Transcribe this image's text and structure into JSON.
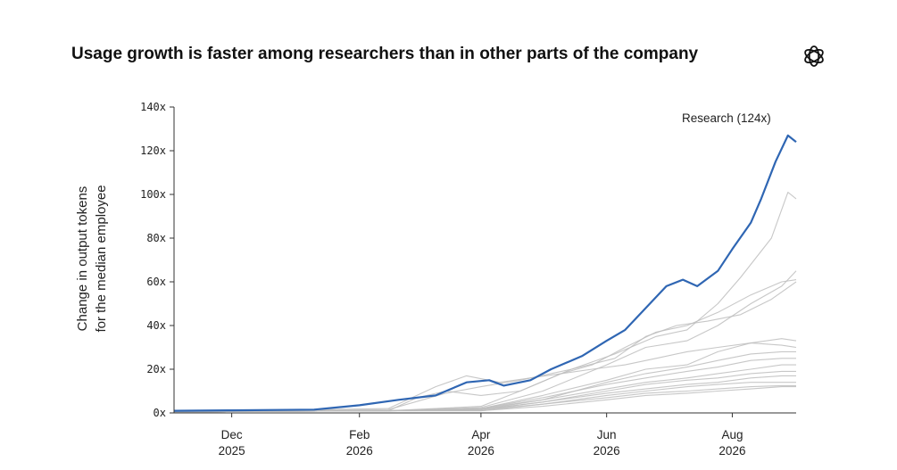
{
  "chart_data": {
    "type": "line",
    "title": "Usage growth is faster among researchers than in other parts of the company",
    "ylabel": [
      "Change in output tokens",
      "for the median employee"
    ],
    "ylim": [
      0,
      140
    ],
    "yticks": [
      0,
      20,
      40,
      60,
      80,
      100,
      120,
      140
    ],
    "ytick_suffix": "x",
    "xlim": [
      "2025-11-03",
      "2026-09-01"
    ],
    "xticks": [
      {
        "date": "2025-12-01",
        "month": "Dec",
        "year": "2025"
      },
      {
        "date": "2026-02-01",
        "month": "Feb",
        "year": "2026"
      },
      {
        "date": "2026-04-01",
        "month": "Apr",
        "year": "2026"
      },
      {
        "date": "2026-06-01",
        "month": "Jun",
        "year": "2026"
      },
      {
        "date": "2026-08-01",
        "month": "Aug",
        "year": "2026"
      }
    ],
    "annotation": "Research (124x)",
    "highlight_color": "#2f66b3",
    "other_color": "#bdbdbd",
    "series": [
      {
        "highlight": true,
        "points": [
          [
            "2025-11-03",
            1
          ],
          [
            "2025-12-01",
            1.2
          ],
          [
            "2026-01-10",
            1.5
          ],
          [
            "2026-02-01",
            3.5
          ],
          [
            "2026-02-20",
            6
          ],
          [
            "2026-03-10",
            8
          ],
          [
            "2026-03-25",
            14
          ],
          [
            "2026-04-05",
            15
          ],
          [
            "2026-04-12",
            12.5
          ],
          [
            "2026-04-25",
            15
          ],
          [
            "2026-05-05",
            20
          ],
          [
            "2026-05-20",
            26
          ],
          [
            "2026-06-01",
            33
          ],
          [
            "2026-06-10",
            38
          ],
          [
            "2026-06-20",
            48
          ],
          [
            "2026-06-30",
            58
          ],
          [
            "2026-07-08",
            61
          ],
          [
            "2026-07-15",
            58
          ],
          [
            "2026-07-25",
            65
          ],
          [
            "2026-08-01",
            75
          ],
          [
            "2026-08-10",
            87
          ],
          [
            "2026-08-15",
            98
          ],
          [
            "2026-08-22",
            115
          ],
          [
            "2026-08-28",
            127
          ],
          [
            "2026-09-01",
            124
          ]
        ]
      },
      {
        "points": [
          [
            "2025-11-03",
            0.5
          ],
          [
            "2026-02-15",
            1
          ],
          [
            "2026-04-01",
            3
          ],
          [
            "2026-04-20",
            10
          ],
          [
            "2026-05-15",
            20
          ],
          [
            "2026-06-05",
            27
          ],
          [
            "2026-06-25",
            35
          ],
          [
            "2026-07-10",
            38
          ],
          [
            "2026-07-25",
            50
          ],
          [
            "2026-08-05",
            62
          ],
          [
            "2026-08-20",
            80
          ],
          [
            "2026-08-28",
            101
          ],
          [
            "2026-09-01",
            98
          ]
        ]
      },
      {
        "points": [
          [
            "2025-11-03",
            0.5
          ],
          [
            "2026-02-15",
            1
          ],
          [
            "2026-04-01",
            2.5
          ],
          [
            "2026-05-01",
            10
          ],
          [
            "2026-06-01",
            22
          ],
          [
            "2026-06-20",
            30
          ],
          [
            "2026-07-10",
            33
          ],
          [
            "2026-07-25",
            40
          ],
          [
            "2026-08-10",
            50
          ],
          [
            "2026-08-25",
            58
          ],
          [
            "2026-09-01",
            65
          ]
        ]
      },
      {
        "points": [
          [
            "2025-11-03",
            0.5
          ],
          [
            "2026-02-15",
            1
          ],
          [
            "2026-03-01",
            7
          ],
          [
            "2026-03-15",
            10
          ],
          [
            "2026-04-01",
            8
          ],
          [
            "2026-04-20",
            10
          ],
          [
            "2026-05-10",
            18
          ],
          [
            "2026-05-25",
            22
          ],
          [
            "2026-06-10",
            30
          ],
          [
            "2026-06-25",
            37
          ],
          [
            "2026-07-10",
            40
          ],
          [
            "2026-07-25",
            46
          ],
          [
            "2026-08-10",
            54
          ],
          [
            "2026-08-25",
            60
          ],
          [
            "2026-09-01",
            61
          ]
        ]
      },
      {
        "points": [
          [
            "2025-11-03",
            0.5
          ],
          [
            "2026-02-15",
            1.5
          ],
          [
            "2026-03-15",
            9
          ],
          [
            "2026-04-01",
            12
          ],
          [
            "2026-04-20",
            15
          ],
          [
            "2026-05-15",
            20
          ],
          [
            "2026-06-05",
            25
          ],
          [
            "2026-06-20",
            35
          ],
          [
            "2026-07-05",
            40
          ],
          [
            "2026-07-20",
            42
          ],
          [
            "2026-08-05",
            45
          ],
          [
            "2026-08-20",
            52
          ],
          [
            "2026-09-01",
            60
          ]
        ]
      },
      {
        "points": [
          [
            "2025-11-03",
            0.5
          ],
          [
            "2026-02-15",
            2
          ],
          [
            "2026-03-10",
            12
          ],
          [
            "2026-03-25",
            17
          ],
          [
            "2026-04-10",
            14
          ],
          [
            "2026-04-25",
            16
          ],
          [
            "2026-05-10",
            18
          ],
          [
            "2026-05-25",
            20
          ],
          [
            "2026-06-10",
            22
          ],
          [
            "2026-06-25",
            25
          ],
          [
            "2026-07-10",
            28
          ],
          [
            "2026-07-25",
            30
          ],
          [
            "2026-08-10",
            32
          ],
          [
            "2026-08-25",
            31
          ],
          [
            "2026-09-01",
            30
          ]
        ]
      },
      {
        "points": [
          [
            "2025-11-03",
            0.5
          ],
          [
            "2026-02-15",
            1
          ],
          [
            "2026-04-01",
            2
          ],
          [
            "2026-05-01",
            8
          ],
          [
            "2026-06-01",
            15
          ],
          [
            "2026-06-20",
            20
          ],
          [
            "2026-07-10",
            22
          ],
          [
            "2026-07-25",
            28
          ],
          [
            "2026-08-10",
            32
          ],
          [
            "2026-08-25",
            34
          ],
          [
            "2026-09-01",
            33
          ]
        ]
      },
      {
        "points": [
          [
            "2025-11-03",
            0.5
          ],
          [
            "2026-02-15",
            1
          ],
          [
            "2026-04-01",
            1.5
          ],
          [
            "2026-05-01",
            6
          ],
          [
            "2026-06-01",
            14
          ],
          [
            "2026-06-20",
            18
          ],
          [
            "2026-07-10",
            21
          ],
          [
            "2026-07-25",
            24
          ],
          [
            "2026-08-10",
            27
          ],
          [
            "2026-08-25",
            28
          ],
          [
            "2026-09-01",
            28
          ]
        ]
      },
      {
        "points": [
          [
            "2025-11-03",
            0.5
          ],
          [
            "2026-02-15",
            1
          ],
          [
            "2026-04-01",
            2
          ],
          [
            "2026-05-01",
            7
          ],
          [
            "2026-06-01",
            13
          ],
          [
            "2026-06-20",
            16
          ],
          [
            "2026-07-10",
            19
          ],
          [
            "2026-07-25",
            21
          ],
          [
            "2026-08-10",
            24
          ],
          [
            "2026-08-25",
            25
          ],
          [
            "2026-09-01",
            25
          ]
        ]
      },
      {
        "points": [
          [
            "2025-11-03",
            0.5
          ],
          [
            "2026-02-15",
            1
          ],
          [
            "2026-04-01",
            2
          ],
          [
            "2026-05-01",
            6
          ],
          [
            "2026-06-01",
            11
          ],
          [
            "2026-06-20",
            14
          ],
          [
            "2026-07-10",
            16
          ],
          [
            "2026-07-25",
            18
          ],
          [
            "2026-08-10",
            20
          ],
          [
            "2026-08-25",
            22
          ],
          [
            "2026-09-01",
            22
          ]
        ]
      },
      {
        "points": [
          [
            "2025-11-03",
            0.5
          ],
          [
            "2026-02-15",
            1
          ],
          [
            "2026-04-01",
            1.5
          ],
          [
            "2026-05-01",
            5
          ],
          [
            "2026-06-01",
            10
          ],
          [
            "2026-06-20",
            13
          ],
          [
            "2026-07-10",
            15
          ],
          [
            "2026-07-25",
            16
          ],
          [
            "2026-08-10",
            18
          ],
          [
            "2026-08-25",
            19
          ],
          [
            "2026-09-01",
            19
          ]
        ]
      },
      {
        "points": [
          [
            "2025-11-03",
            0.5
          ],
          [
            "2026-02-15",
            1
          ],
          [
            "2026-04-01",
            1.5
          ],
          [
            "2026-05-01",
            5
          ],
          [
            "2026-06-01",
            9
          ],
          [
            "2026-06-20",
            11
          ],
          [
            "2026-07-10",
            13
          ],
          [
            "2026-07-25",
            14
          ],
          [
            "2026-08-10",
            16
          ],
          [
            "2026-08-25",
            17
          ],
          [
            "2026-09-01",
            17
          ]
        ]
      },
      {
        "points": [
          [
            "2025-11-03",
            0.5
          ],
          [
            "2026-02-15",
            1
          ],
          [
            "2026-04-01",
            1.5
          ],
          [
            "2026-05-01",
            4
          ],
          [
            "2026-06-01",
            8
          ],
          [
            "2026-06-20",
            10
          ],
          [
            "2026-07-10",
            12
          ],
          [
            "2026-07-25",
            13
          ],
          [
            "2026-08-10",
            14
          ],
          [
            "2026-08-25",
            14
          ],
          [
            "2026-09-01",
            14
          ]
        ]
      },
      {
        "points": [
          [
            "2025-11-03",
            0.5
          ],
          [
            "2026-02-15",
            1
          ],
          [
            "2026-04-01",
            1
          ],
          [
            "2026-05-01",
            4
          ],
          [
            "2026-06-01",
            7
          ],
          [
            "2026-06-20",
            9
          ],
          [
            "2026-07-10",
            10
          ],
          [
            "2026-07-25",
            11
          ],
          [
            "2026-08-10",
            12
          ],
          [
            "2026-08-25",
            12.5
          ],
          [
            "2026-09-01",
            12.5
          ]
        ]
      },
      {
        "points": [
          [
            "2025-11-03",
            0.5
          ],
          [
            "2026-02-15",
            1
          ],
          [
            "2026-04-01",
            1
          ],
          [
            "2026-05-01",
            3
          ],
          [
            "2026-06-01",
            6
          ],
          [
            "2026-06-20",
            8
          ],
          [
            "2026-07-10",
            9
          ],
          [
            "2026-07-25",
            10
          ],
          [
            "2026-08-10",
            11
          ],
          [
            "2026-08-25",
            12
          ],
          [
            "2026-09-01",
            12
          ]
        ]
      }
    ]
  }
}
